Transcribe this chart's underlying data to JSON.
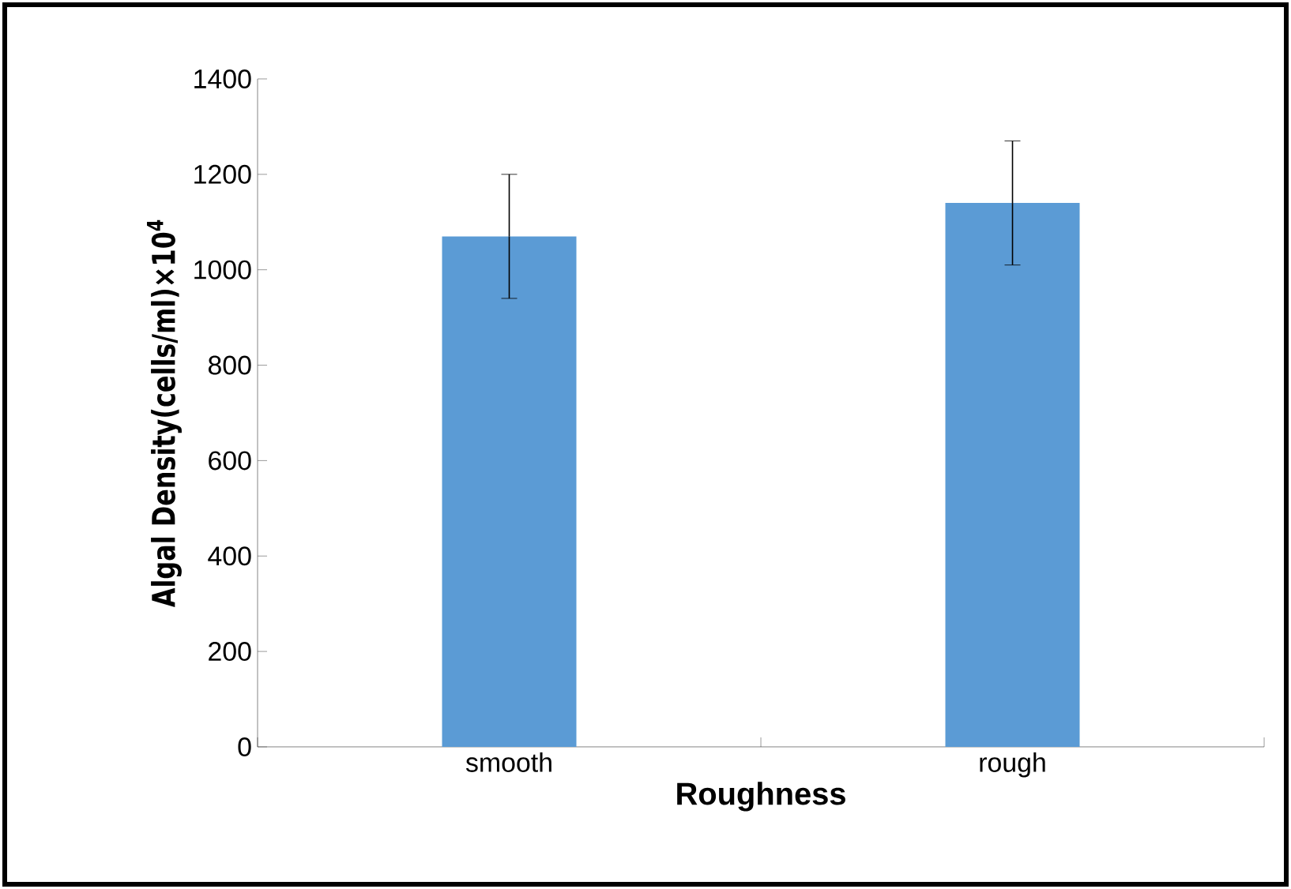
{
  "chart_data": {
    "type": "bar",
    "categories": [
      "smooth",
      "rough"
    ],
    "values": [
      1070,
      1140
    ],
    "errors": [
      130,
      130
    ],
    "color": "#5b9bd5",
    "xlabel": "Roughness",
    "ylabel": "Algal Density(cells/ml)×10$^{4}$",
    "ylim": [
      0,
      1400
    ],
    "yticks": [
      0,
      200,
      400,
      600,
      800,
      1000,
      1200,
      1400
    ],
    "grid": false
  }
}
